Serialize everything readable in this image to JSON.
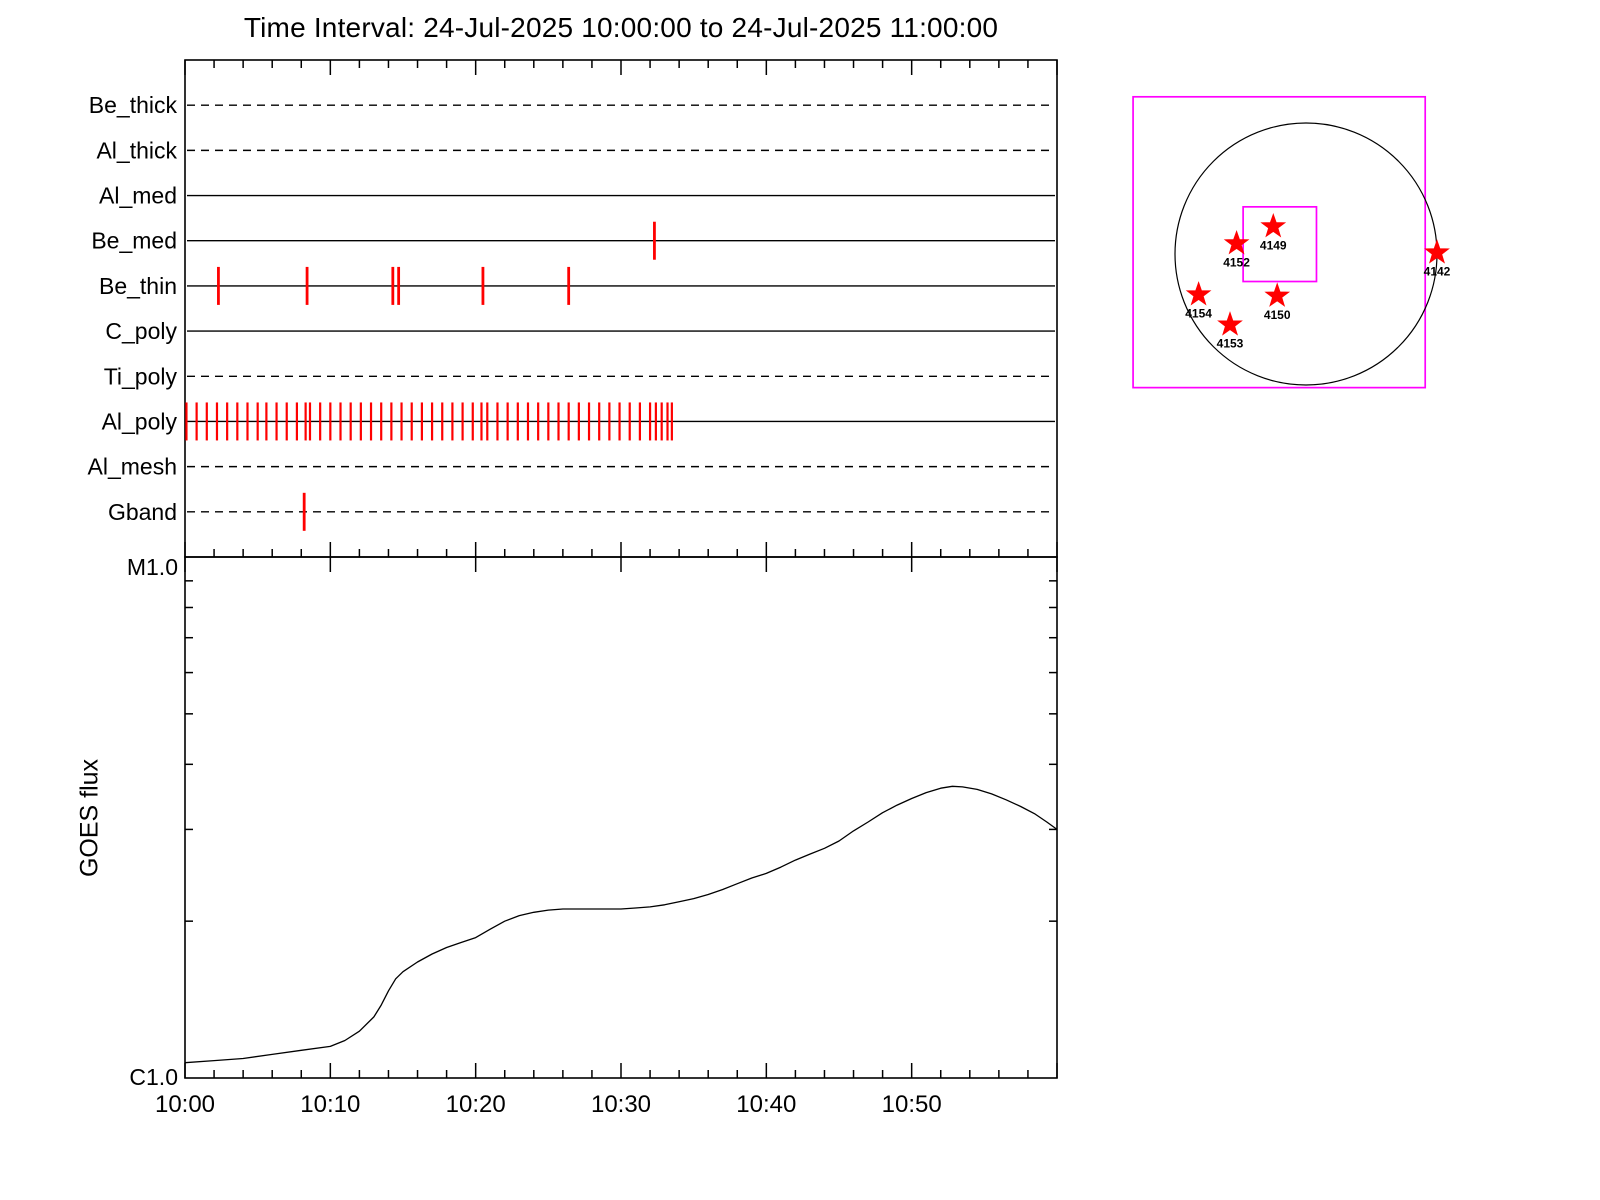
{
  "title": "Time Interval: 24-Jul-2025 10:00:00 to 24-Jul-2025 11:00:00",
  "chart_data": [
    {
      "type": "timeline",
      "name": "xrt-filter-exposure-timeline",
      "title": "Time Interval: 24-Jul-2025 10:00:00 to 24-Jul-2025 11:00:00",
      "x_range_minutes": [
        0,
        60
      ],
      "x_start_label": "10:00",
      "x_end_label": "11:00",
      "x_tick_minutes": [
        0,
        10,
        20,
        30,
        40,
        50
      ],
      "x_tick_labels": [
        "10:00",
        "10:10",
        "10:20",
        "10:30",
        "10:40",
        "10:50"
      ],
      "event_color": "#ff0000",
      "line_color": "#000000",
      "channels": [
        {
          "label": "Be_thick",
          "line_style": "dashed",
          "events_min": []
        },
        {
          "label": "Al_thick",
          "line_style": "dashed",
          "events_min": []
        },
        {
          "label": "Al_med",
          "line_style": "solid",
          "events_min": []
        },
        {
          "label": "Be_med",
          "line_style": "solid",
          "events_min": [
            32.3
          ]
        },
        {
          "label": "Be_thin",
          "line_style": "solid",
          "events_min": [
            2.3,
            8.4,
            14.3,
            14.7,
            20.5,
            26.4
          ]
        },
        {
          "label": "C_poly",
          "line_style": "solid",
          "events_min": []
        },
        {
          "label": "Ti_poly",
          "line_style": "dashed",
          "events_min": []
        },
        {
          "label": "Al_poly",
          "line_style": "solid",
          "events_min": [
            0.1,
            0.8,
            1.5,
            2.2,
            2.9,
            3.6,
            4.3,
            5.0,
            5.6,
            6.3,
            7.0,
            7.7,
            8.3,
            8.6,
            9.3,
            10.0,
            10.7,
            11.4,
            12.1,
            12.8,
            13.5,
            14.2,
            14.9,
            15.6,
            16.3,
            17.0,
            17.7,
            18.4,
            19.1,
            19.8,
            20.4,
            20.8,
            21.5,
            22.2,
            22.9,
            23.6,
            24.3,
            25.0,
            25.7,
            26.4,
            27.1,
            27.8,
            28.5,
            29.2,
            29.9,
            30.6,
            31.3,
            32.0,
            32.4,
            32.8,
            33.2,
            33.5
          ]
        },
        {
          "label": "Al_mesh",
          "line_style": "dashed",
          "events_min": []
        },
        {
          "label": "Gband",
          "line_style": "dashed",
          "events_min": [
            8.2
          ]
        }
      ]
    },
    {
      "type": "line",
      "name": "goes-flux-curve",
      "ylabel": "GOES flux",
      "yscale": "log",
      "y_top_label": "M1.0",
      "y_bottom_label": "C1.0",
      "y_units_note": "C-class units, C1.0 = 1, M1.0 = 10, log scale",
      "ylim": [
        1,
        10
      ],
      "x_tick_minutes": [
        0,
        10,
        20,
        30,
        40,
        50
      ],
      "x_tick_labels": [
        "10:00",
        "10:10",
        "10:20",
        "10:30",
        "10:40",
        "10:50"
      ],
      "points_min_flux": [
        [
          0,
          1.07
        ],
        [
          2,
          1.08
        ],
        [
          4,
          1.09
        ],
        [
          6,
          1.11
        ],
        [
          8,
          1.13
        ],
        [
          10,
          1.15
        ],
        [
          11,
          1.18
        ],
        [
          12,
          1.23
        ],
        [
          13,
          1.31
        ],
        [
          13.5,
          1.38
        ],
        [
          14,
          1.47
        ],
        [
          14.5,
          1.55
        ],
        [
          15,
          1.6
        ],
        [
          16,
          1.67
        ],
        [
          17,
          1.73
        ],
        [
          18,
          1.78
        ],
        [
          19,
          1.82
        ],
        [
          20,
          1.86
        ],
        [
          21,
          1.93
        ],
        [
          22,
          2.0
        ],
        [
          23,
          2.05
        ],
        [
          24,
          2.08
        ],
        [
          25,
          2.1
        ],
        [
          26,
          2.11
        ],
        [
          27,
          2.11
        ],
        [
          28,
          2.11
        ],
        [
          29,
          2.11
        ],
        [
          30,
          2.11
        ],
        [
          31,
          2.12
        ],
        [
          32,
          2.13
        ],
        [
          33,
          2.15
        ],
        [
          34,
          2.18
        ],
        [
          35,
          2.21
        ],
        [
          36,
          2.25
        ],
        [
          37,
          2.3
        ],
        [
          38,
          2.36
        ],
        [
          39,
          2.42
        ],
        [
          40,
          2.47
        ],
        [
          41,
          2.54
        ],
        [
          42,
          2.62
        ],
        [
          43,
          2.69
        ],
        [
          44,
          2.76
        ],
        [
          45,
          2.85
        ],
        [
          46,
          2.98
        ],
        [
          47,
          3.1
        ],
        [
          48,
          3.23
        ],
        [
          49,
          3.34
        ],
        [
          50,
          3.44
        ],
        [
          51,
          3.53
        ],
        [
          52,
          3.6
        ],
        [
          52.8,
          3.63
        ],
        [
          53.5,
          3.62
        ],
        [
          54.5,
          3.58
        ],
        [
          55.5,
          3.51
        ],
        [
          56.5,
          3.42
        ],
        [
          57.5,
          3.32
        ],
        [
          58.5,
          3.21
        ],
        [
          59.3,
          3.1
        ],
        [
          60,
          3.0
        ]
      ]
    },
    {
      "type": "scatter",
      "name": "solar-disk-active-region-map",
      "frame_color": "#ff00ff",
      "limb_color": "#000000",
      "marker": "star",
      "marker_color": "#ff0000",
      "outer_fov_rsun": {
        "x1": -1.32,
        "y1": -1.2,
        "x2": 0.91,
        "y2": 1.02
      },
      "inner_fov_rsun": {
        "x1": -0.48,
        "y1": -0.36,
        "x2": 0.08,
        "y2": 0.21
      },
      "regions": [
        {
          "label": "4149",
          "x": -0.25,
          "y": -0.21
        },
        {
          "label": "4152",
          "x": -0.53,
          "y": -0.08
        },
        {
          "label": "4142",
          "x": 1.0,
          "y": -0.01
        },
        {
          "label": "4154",
          "x": -0.82,
          "y": 0.31
        },
        {
          "label": "4150",
          "x": -0.22,
          "y": 0.32
        },
        {
          "label": "4153",
          "x": -0.58,
          "y": 0.54
        }
      ]
    }
  ]
}
